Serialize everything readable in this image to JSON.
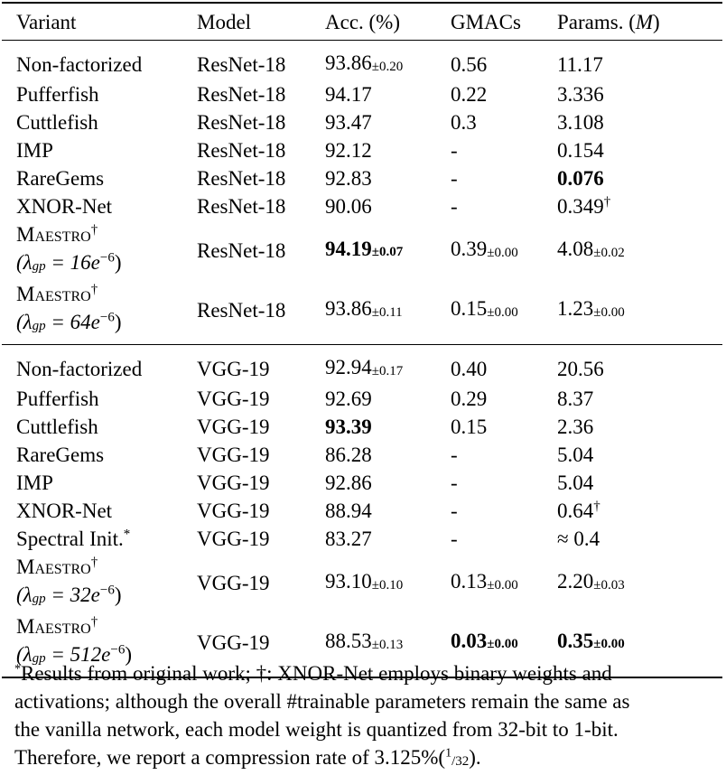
{
  "header": {
    "variant": "Variant",
    "model": "Model",
    "acc": "Acc. (%)",
    "gmacs": "GMACs",
    "params": "Params. (",
    "params_unit": "M",
    "params_close": ")"
  },
  "resnet_rows": [
    {
      "variant": "Non-factorized",
      "model": "ResNet-18",
      "acc": "93.86",
      "acc_std": "±0.20",
      "gmacs": "0.56",
      "params": "11.17"
    },
    {
      "variant": "Pufferfish",
      "model": "ResNet-18",
      "acc": "94.17",
      "gmacs": "0.22",
      "params": "3.336"
    },
    {
      "variant": "Cuttlefish",
      "model": "ResNet-18",
      "acc": "93.47",
      "gmacs": "0.3",
      "params": "3.108"
    },
    {
      "variant": "IMP",
      "model": "ResNet-18",
      "acc": "92.12",
      "gmacs": "-",
      "params": "0.154"
    },
    {
      "variant": "RareGems",
      "model": "ResNet-18",
      "acc": "92.83",
      "gmacs": "-",
      "params": "0.076"
    },
    {
      "variant": "XNOR-Net",
      "model": "ResNet-18",
      "acc": "90.06",
      "gmacs": "-",
      "params": "0.349",
      "params_mark": "†"
    },
    {
      "variant": "Maestro",
      "variant_mark": "†",
      "lambda": "(λ",
      "lambda_sub": "gp",
      "lambda_val": " = 16e",
      "lambda_exp": "−6",
      "lambda_close": ")",
      "model": "ResNet-18",
      "acc": "94.19",
      "acc_std": "±0.07",
      "gmacs": "0.39",
      "gmacs_std": "±0.00",
      "params": "4.08",
      "params_std": "±0.02"
    },
    {
      "variant": "Maestro",
      "variant_mark": "†",
      "lambda": "(λ",
      "lambda_sub": "gp",
      "lambda_val": " = 64e",
      "lambda_exp": "−6",
      "lambda_close": ")",
      "model": "ResNet-18",
      "acc": "93.86",
      "acc_std": "±0.11",
      "gmacs": "0.15",
      "gmacs_std": "±0.00",
      "params": "1.23",
      "params_std": "±0.00"
    }
  ],
  "vgg_rows": [
    {
      "variant": "Non-factorized",
      "model": "VGG-19",
      "acc": "92.94",
      "acc_std": "±0.17",
      "gmacs": "0.40",
      "params": "20.56"
    },
    {
      "variant": "Pufferfish",
      "model": "VGG-19",
      "acc": "92.69",
      "gmacs": "0.29",
      "params": "8.37"
    },
    {
      "variant": "Cuttlefish",
      "model": "VGG-19",
      "acc": "93.39",
      "gmacs": "0.15",
      "params": "2.36"
    },
    {
      "variant": "RareGems",
      "model": "VGG-19",
      "acc": "86.28",
      "gmacs": "-",
      "params": "5.04"
    },
    {
      "variant": "IMP",
      "model": "VGG-19",
      "acc": "92.86",
      "gmacs": "-",
      "params": "5.04"
    },
    {
      "variant": "XNOR-Net",
      "model": "VGG-19",
      "acc": "88.94",
      "gmacs": "-",
      "params": "0.64",
      "params_mark": "†"
    },
    {
      "variant": "Spectral Init.",
      "variant_mark": "*",
      "model": "VGG-19",
      "acc": "83.27",
      "gmacs": "-",
      "params": "≈ 0.4"
    },
    {
      "variant": "Maestro",
      "variant_mark": "†",
      "lambda": "(λ",
      "lambda_sub": "gp",
      "lambda_val": " = 32e",
      "lambda_exp": "−6",
      "lambda_close": ")",
      "model": "VGG-19",
      "acc": "93.10",
      "acc_std": "±0.10",
      "gmacs": "0.13",
      "gmacs_std": "±0.00",
      "params": "2.20",
      "params_std": "±0.03"
    },
    {
      "variant": "Maestro",
      "variant_mark": "†",
      "lambda": "(λ",
      "lambda_sub": "gp",
      "lambda_val": " = 512e",
      "lambda_exp": "−6",
      "lambda_close": ")",
      "model": "VGG-19",
      "acc": "88.53",
      "acc_std": "±0.13",
      "gmacs": "0.03",
      "gmacs_std": "±0.00",
      "params": "0.35",
      "params_std": "±0.00"
    }
  ],
  "footnote": {
    "star": "*",
    "line1": "Results from original work; †: XNOR-Net employs binary weights and",
    "line2": "activations; although the overall #trainable parameters remain the same as",
    "line3": "the vanilla network, each model weight is quantized from 32-bit to 1-bit.",
    "line4_pre": "Therefore, we report a compression rate of ",
    "rate": "3.125%",
    "frac_open": "(",
    "frac_num": "1",
    "frac_den": "/32",
    "frac_close": ")."
  }
}
